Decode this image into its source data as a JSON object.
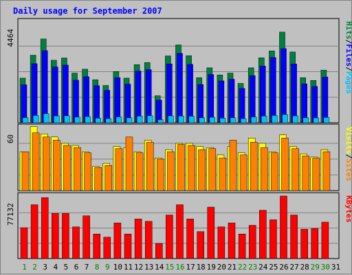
{
  "title": "Daily usage for September 2007",
  "chart_data": [
    {
      "type": "bar",
      "title": "Daily usage for September 2007",
      "categories": [
        "1",
        "2",
        "3",
        "4",
        "5",
        "6",
        "7",
        "8",
        "9",
        "10",
        "11",
        "12",
        "13",
        "14",
        "15",
        "16",
        "17",
        "18",
        "19",
        "20",
        "21",
        "22",
        "23",
        "24",
        "25",
        "26",
        "27",
        "28",
        "29",
        "30",
        "31"
      ],
      "weekend_days": [
        "1",
        "2",
        "8",
        "9",
        "15",
        "16",
        "22",
        "23",
        "29",
        "30"
      ],
      "ymax_label": "4464",
      "ylim": [
        0,
        4464
      ],
      "ylabel_parts": [
        "Pages",
        "/",
        "Files",
        "/",
        "Hits"
      ],
      "series": [
        {
          "name": "Hits",
          "color": "#008040",
          "values": [
            1950,
            2950,
            3660,
            2730,
            2830,
            2170,
            2340,
            1880,
            1630,
            2240,
            1950,
            2540,
            2630,
            1180,
            2920,
            3400,
            2930,
            1970,
            2400,
            2090,
            2170,
            1720,
            2400,
            2840,
            3140,
            3960,
            3090,
            1970,
            1850,
            2300,
            0
          ]
        },
        {
          "name": "Files",
          "color": "#0000ff",
          "values": [
            1660,
            2580,
            3150,
            2440,
            2520,
            1860,
            2010,
            1620,
            1420,
            1970,
            1690,
            2260,
            2320,
            990,
            2570,
            3030,
            2550,
            1670,
            2110,
            1830,
            1900,
            1500,
            2060,
            2480,
            2850,
            3240,
            2570,
            1700,
            1590,
            2000,
            0
          ]
        },
        {
          "name": "Pages",
          "color": "#00c0ff",
          "values": [
            225,
            320,
            395,
            300,
            305,
            250,
            270,
            200,
            180,
            255,
            215,
            290,
            305,
            135,
            300,
            295,
            285,
            220,
            240,
            200,
            215,
            180,
            250,
            295,
            320,
            360,
            300,
            215,
            210,
            235,
            0
          ]
        }
      ]
    },
    {
      "type": "bar",
      "ymax_label": "60",
      "ylim": [
        0,
        60
      ],
      "ylabel_parts": [
        "Sites",
        "/",
        "Visits"
      ],
      "series": [
        {
          "name": "Visits",
          "color": "#ffff00",
          "values": [
            37,
            61,
            54,
            51,
            45,
            43,
            37,
            23,
            26,
            42,
            41,
            37,
            48,
            31,
            39,
            45,
            45,
            42,
            41,
            34,
            42,
            36,
            50,
            45,
            37,
            53,
            42,
            35,
            32,
            39,
            0
          ]
        },
        {
          "name": "Sites",
          "color": "#ff8000",
          "values": [
            37,
            55,
            51,
            48,
            43,
            41,
            36,
            22,
            24,
            40,
            51,
            36,
            46,
            30,
            37,
            44,
            43,
            39,
            40,
            31,
            48,
            34,
            46,
            41,
            36,
            50,
            40,
            33,
            31,
            37,
            0
          ]
        }
      ]
    },
    {
      "type": "bar",
      "ymax_label": "77132",
      "ylim": [
        0,
        77132
      ],
      "ylabel_parts": [
        "KBytes"
      ],
      "series": [
        {
          "name": "KBytes",
          "color": "#ff0000",
          "values": [
            39000,
            68000,
            77000,
            57000,
            57000,
            40000,
            54000,
            31000,
            27000,
            45000,
            31000,
            50000,
            47000,
            19000,
            55000,
            68000,
            50000,
            34000,
            65000,
            40000,
            45000,
            31000,
            42000,
            61000,
            49000,
            79000,
            55000,
            37000,
            38000,
            46000,
            0
          ]
        }
      ]
    }
  ]
}
